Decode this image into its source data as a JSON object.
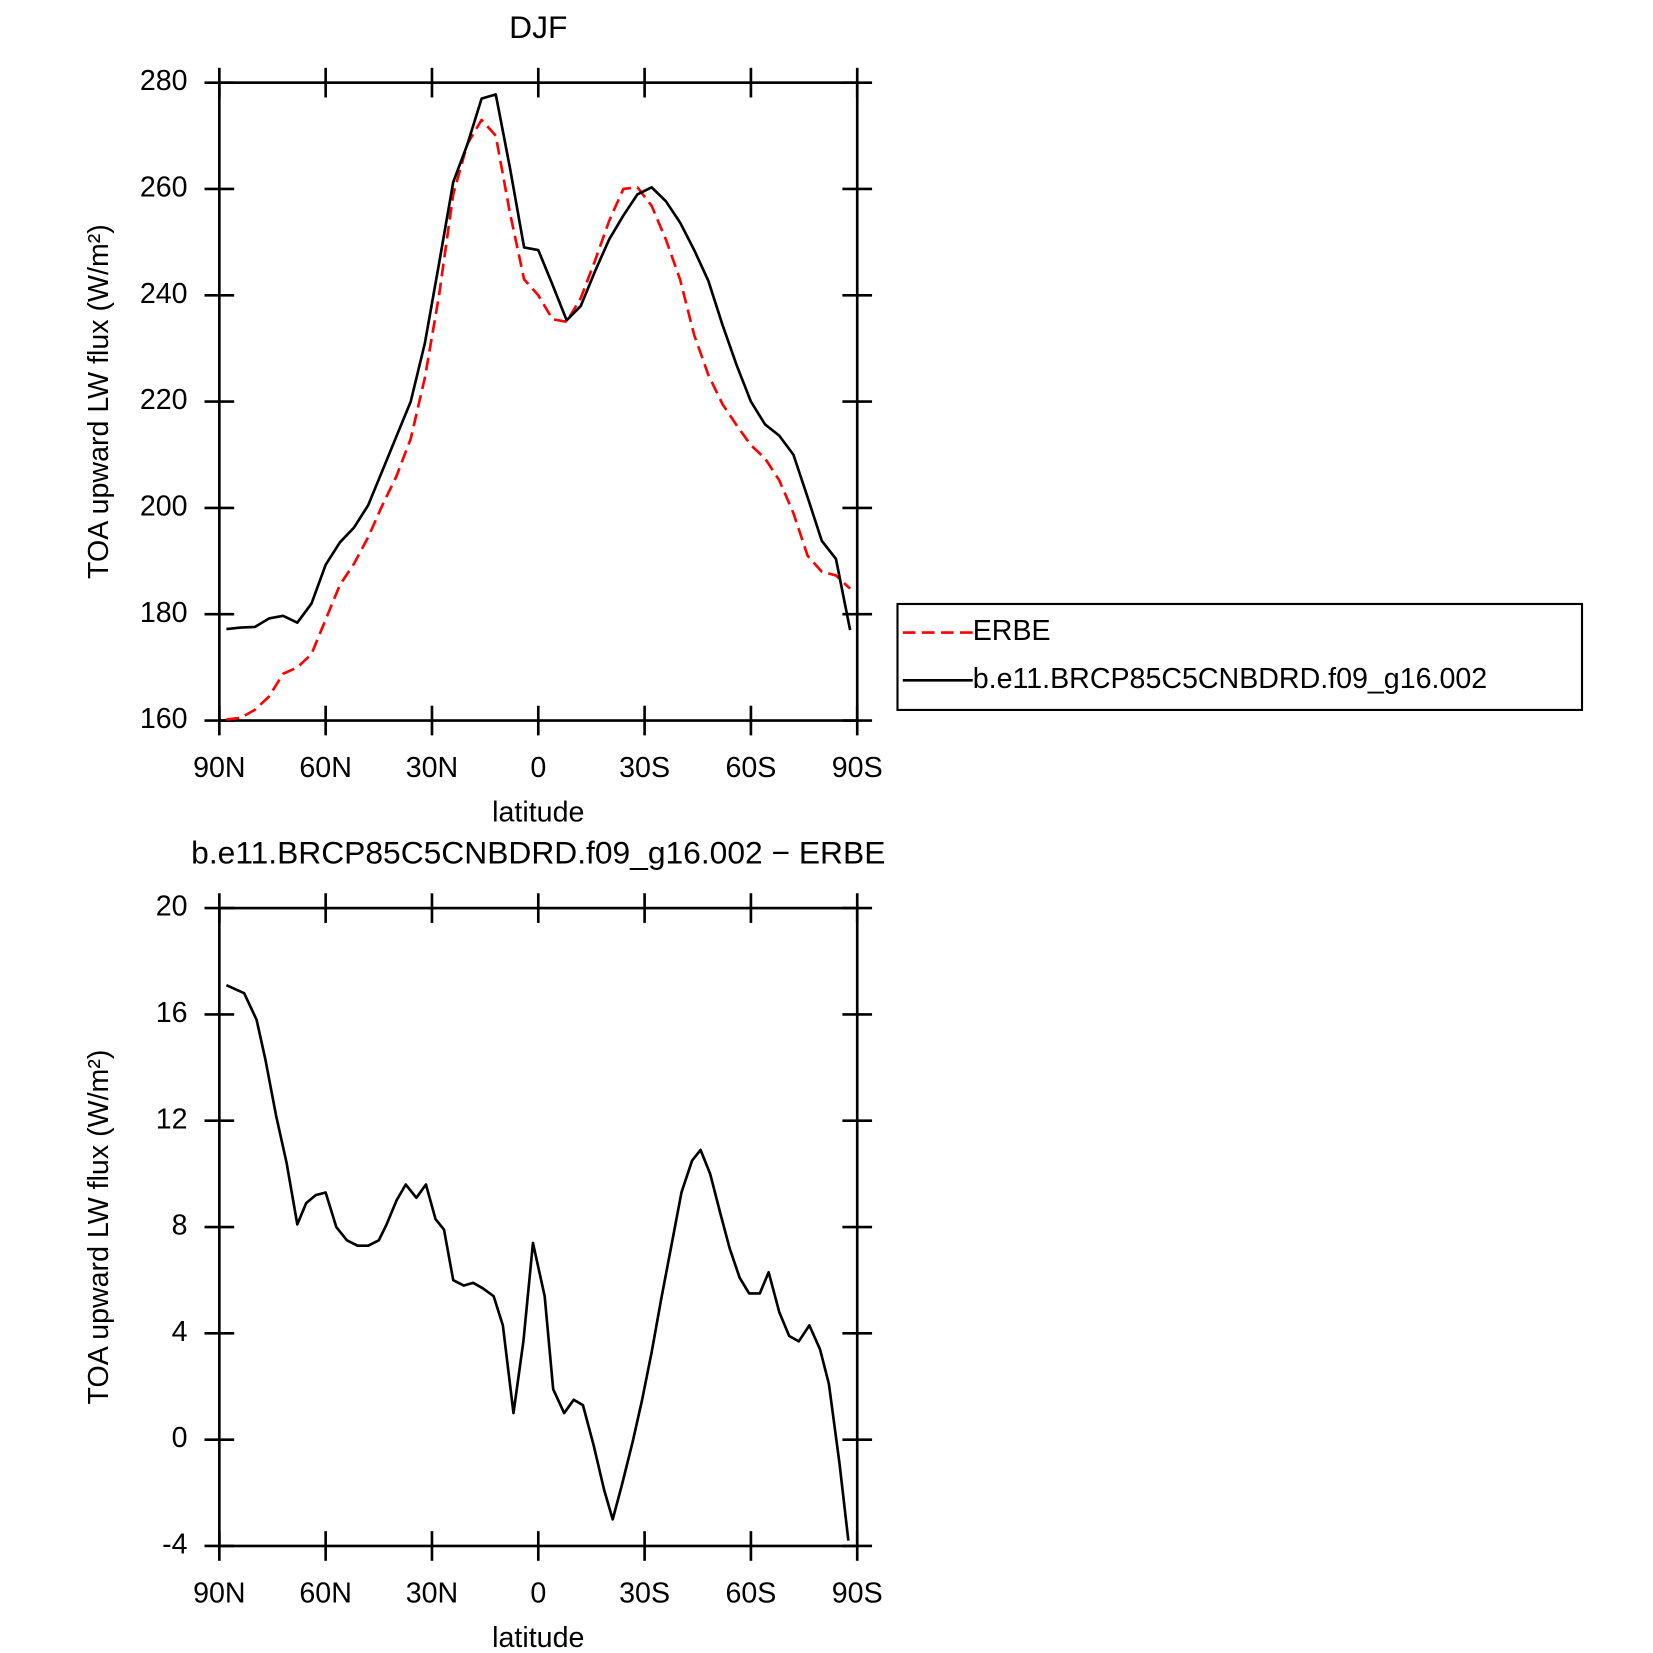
{
  "chart_data": [
    {
      "type": "line",
      "title": "DJF",
      "x_label": "latitude",
      "y_label": "TOA upward LW flux (W/m²)",
      "x": [
        88,
        84,
        80,
        76,
        72,
        68,
        64,
        60,
        56,
        52,
        48,
        44,
        40,
        36,
        32,
        28,
        24,
        20,
        16,
        12,
        8,
        4,
        0,
        -4,
        -8,
        -12,
        -16,
        -20,
        -24,
        -28,
        -32,
        -36,
        -40,
        -44,
        -48,
        -52,
        -56,
        -60,
        -64,
        -68,
        -72,
        -76,
        -80,
        -84,
        -88
      ],
      "series": [
        {
          "name": "ERBE",
          "color": "#ff0000",
          "dash": "dashed",
          "values": [
            160.2,
            160.5,
            162,
            164.5,
            168.8,
            170,
            172.5,
            179,
            185.5,
            189.5,
            194.5,
            200.5,
            206,
            213,
            224.5,
            240,
            259,
            268.5,
            273,
            270,
            255.5,
            243,
            240,
            235.5,
            235,
            239.5,
            246.5,
            254,
            260,
            260.3,
            256.8,
            250.5,
            243,
            232.5,
            225,
            219.5,
            215.5,
            211.8,
            209.3,
            205.2,
            199,
            191,
            188,
            187.3,
            184.8
          ]
        },
        {
          "name": "b.e11.BRCP85C5CNBDRD.f09_g16.002",
          "color": "#000000",
          "dash": "solid",
          "values": [
            177.2,
            177.5,
            177.6,
            179.2,
            179.7,
            178.4,
            182,
            189.3,
            193.5,
            196.3,
            200.5,
            207,
            213.5,
            220,
            231,
            246,
            261.3,
            268.4,
            277,
            277.8,
            264,
            249,
            248.5,
            242,
            235.3,
            238,
            244.5,
            250.5,
            255,
            259,
            260.3,
            257.7,
            253.7,
            248.5,
            242.7,
            234.4,
            226.8,
            220,
            215.7,
            213.6,
            210,
            202,
            193.8,
            190.4,
            177
          ]
        }
      ],
      "xlim": [
        90,
        -90
      ],
      "xticks": [
        {
          "value": 90,
          "label": "90N"
        },
        {
          "value": 60,
          "label": "60N"
        },
        {
          "value": 30,
          "label": "30N"
        },
        0,
        {
          "value": -30,
          "label": "30S"
        },
        {
          "value": -60,
          "label": "60S"
        },
        {
          "value": -90,
          "label": "90S"
        }
      ],
      "ylim": [
        160,
        280
      ],
      "yticks": [
        160,
        180,
        200,
        220,
        240,
        260,
        280
      ],
      "legend": "right"
    },
    {
      "type": "line",
      "title": "b.e11.BRCP85C5CNBDRD.f09_g16.002 − ERBE",
      "x_label": "latitude",
      "y_label": "TOA upward LW flux (W/m²)",
      "x": [
        88,
        83,
        79.5,
        77,
        74,
        71,
        68,
        65.5,
        62.8,
        60,
        57,
        54,
        51,
        48,
        45,
        42.8,
        40,
        37.4,
        34.4,
        31.7,
        29,
        26.6,
        24,
        21,
        18.4,
        15.7,
        12.6,
        10,
        7,
        4.2,
        1.5,
        -1.8,
        -4.2,
        -7.3,
        -10,
        -12.6,
        -15.6,
        -18.6,
        -21,
        -23.6,
        -26.6,
        -29.3,
        -32,
        -34.7,
        -37.7,
        -40.4,
        -43.4,
        -45.8,
        -48.5,
        -51.4,
        -54,
        -56.8,
        -59.5,
        -62.5,
        -65,
        -68,
        -70.8,
        -73.5,
        -76.5,
        -79.5,
        -82,
        -85,
        -87.5
      ],
      "series": [
        {
          "color": "#000000",
          "dash": "solid",
          "values": [
            17.1,
            16.8,
            15.8,
            14.3,
            12.2,
            10.4,
            8.1,
            8.9,
            9.2,
            9.3,
            8.0,
            7.5,
            7.3,
            7.3,
            7.5,
            8.1,
            9.0,
            9.6,
            9.1,
            9.6,
            8.3,
            7.9,
            6.0,
            5.8,
            5.9,
            5.7,
            5.4,
            4.3,
            1.0,
            3.7,
            7.4,
            5.4,
            1.9,
            1.0,
            1.5,
            1.3,
            -0.2,
            -1.9,
            -3.0,
            -1.7,
            -0.1,
            1.5,
            3.3,
            5.3,
            7.4,
            9.3,
            10.5,
            10.9,
            10.0,
            8.5,
            7.2,
            6.1,
            5.5,
            5.5,
            6.3,
            4.8,
            3.9,
            3.7,
            4.3,
            3.4,
            2.1,
            -0.9,
            -3.8
          ]
        }
      ],
      "xlim": [
        90,
        -90
      ],
      "xticks": [
        {
          "value": 90,
          "label": "90N"
        },
        {
          "value": 60,
          "label": "60N"
        },
        {
          "value": 30,
          "label": "30N"
        },
        0,
        {
          "value": -30,
          "label": "30S"
        },
        {
          "value": -60,
          "label": "60S"
        },
        {
          "value": -90,
          "label": "90S"
        }
      ],
      "ylim": [
        -4,
        20
      ],
      "yticks": [
        -4,
        0,
        4,
        8,
        12,
        16,
        20
      ]
    }
  ]
}
